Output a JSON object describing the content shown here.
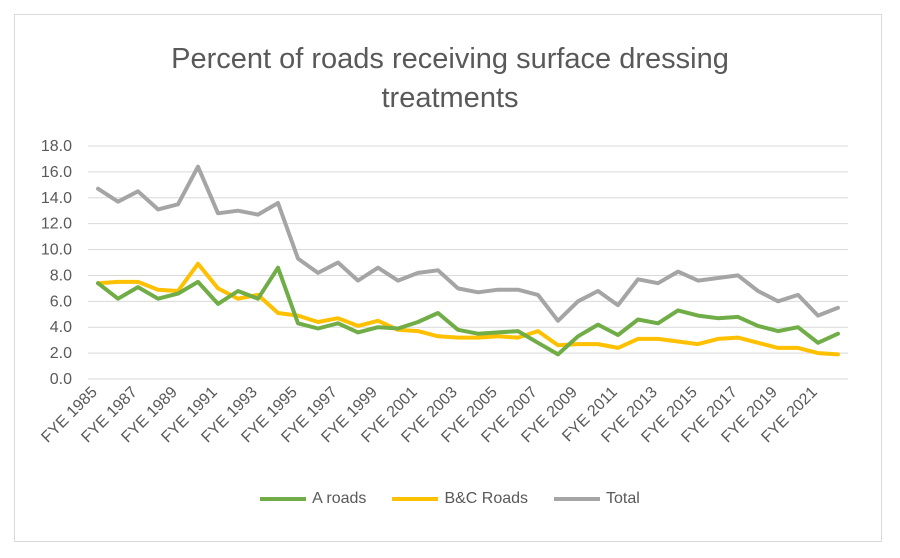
{
  "chart_data": {
    "type": "line",
    "title_line1": "Percent of roads receiving surface dressing",
    "title_line2": "treatments",
    "xlabel": "",
    "ylabel": "",
    "ylim": [
      0,
      18
    ],
    "yticks": [
      "0.0",
      "2.0",
      "4.0",
      "6.0",
      "8.0",
      "10.0",
      "12.0",
      "14.0",
      "16.0",
      "18.0"
    ],
    "categories": [
      "FYE 1985",
      "FYE 1986",
      "FYE 1987",
      "FYE 1988",
      "FYE 1989",
      "FYE 1990",
      "FYE 1991",
      "FYE 1992",
      "FYE 1993",
      "FYE 1994",
      "FYE 1995",
      "FYE 1996",
      "FYE 1997",
      "FYE 1998",
      "FYE 1999",
      "FYE 2000",
      "FYE 2001",
      "FYE 2002",
      "FYE 2003",
      "FYE 2004",
      "FYE 2005",
      "FYE 2006",
      "FYE 2007",
      "FYE 2008",
      "FYE 2009",
      "FYE 2010",
      "FYE 2011",
      "FYE 2012",
      "FYE 2013",
      "FYE 2014",
      "FYE 2015",
      "FYE 2016",
      "FYE 2017",
      "FYE 2018",
      "FYE 2019",
      "FYE 2020",
      "FYE 2021",
      "FYE 2022"
    ],
    "tick_labels": [
      "FYE 1985",
      "FYE 1987",
      "FYE 1989",
      "FYE 1991",
      "FYE 1993",
      "FYE 1995",
      "FYE 1997",
      "FYE 1999",
      "FYE 2001",
      "FYE 2003",
      "FYE 2005",
      "FYE 2007",
      "FYE 2009",
      "FYE 2011",
      "FYE 2013",
      "FYE 2015",
      "FYE 2017",
      "FYE 2019",
      "FYE 2021"
    ],
    "grid": true,
    "legend_position": "bottom",
    "series": [
      {
        "name": "A roads",
        "color": "#70ad47",
        "values": [
          7.4,
          6.2,
          7.1,
          6.2,
          6.6,
          7.5,
          5.8,
          6.8,
          6.2,
          8.6,
          4.3,
          3.9,
          4.3,
          3.6,
          4.0,
          3.9,
          4.4,
          5.1,
          3.8,
          3.5,
          3.6,
          3.7,
          2.8,
          1.9,
          3.3,
          4.2,
          3.4,
          4.6,
          4.3,
          5.3,
          4.9,
          4.7,
          4.8,
          4.1,
          3.7,
          4.0,
          2.8,
          3.5
        ]
      },
      {
        "name": "B&C Roads",
        "color": "#ffc000",
        "values": [
          7.4,
          7.5,
          7.5,
          6.9,
          6.8,
          8.9,
          7.0,
          6.2,
          6.5,
          5.1,
          4.9,
          4.4,
          4.7,
          4.1,
          4.5,
          3.8,
          3.7,
          3.3,
          3.2,
          3.2,
          3.3,
          3.2,
          3.7,
          2.6,
          2.7,
          2.7,
          2.4,
          3.1,
          3.1,
          2.9,
          2.7,
          3.1,
          3.2,
          2.8,
          2.4,
          2.4,
          2.0,
          1.9
        ]
      },
      {
        "name": "Total",
        "color": "#a5a5a5",
        "values": [
          14.7,
          13.7,
          14.5,
          13.1,
          13.5,
          16.4,
          12.8,
          13.0,
          12.7,
          13.6,
          9.3,
          8.2,
          9.0,
          7.6,
          8.6,
          7.6,
          8.2,
          8.4,
          7.0,
          6.7,
          6.9,
          6.9,
          6.5,
          4.5,
          6.0,
          6.8,
          5.7,
          7.7,
          7.4,
          8.3,
          7.6,
          7.8,
          8.0,
          6.8,
          6.0,
          6.5,
          4.9,
          5.5
        ]
      }
    ]
  }
}
